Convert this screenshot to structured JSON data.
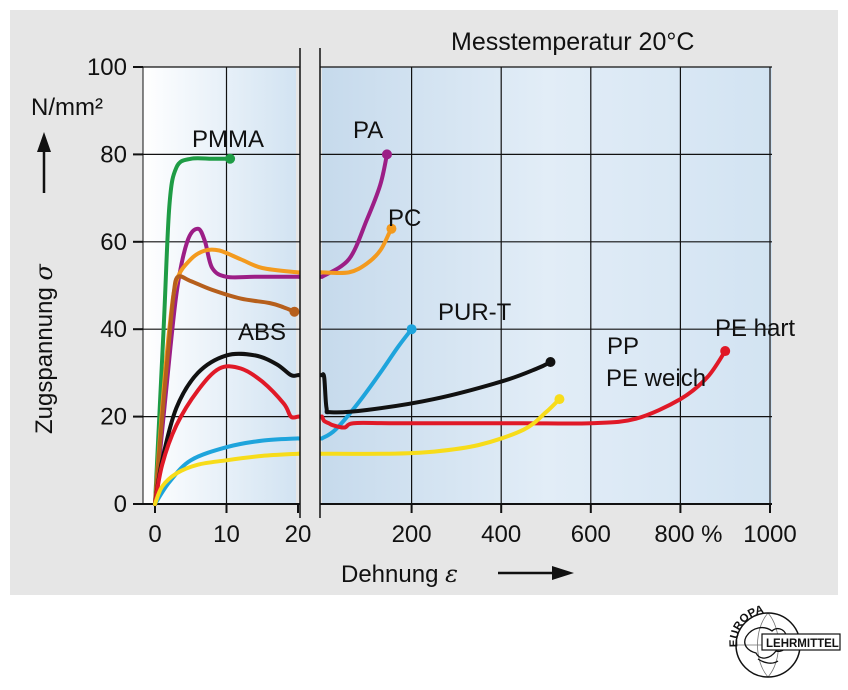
{
  "figure": {
    "subtitle": "Messtemperatur 20°C",
    "background_color": "#e6e6e6",
    "plot_gradient": [
      "#ffffff",
      "#d2e3f2"
    ]
  },
  "chart_data": {
    "type": "line",
    "title": "",
    "subtitle": "Messtemperatur 20°C",
    "xlabel": "Dehnung ε",
    "ylabel": "Zugspannung σ",
    "y_unit": "N/mm²",
    "x_unit": "%",
    "grid": true,
    "axis_break": "x-axis split: 0–20 % on left segment, 0–1000 % on right segment",
    "x_segments": [
      {
        "range": [
          0,
          20
        ],
        "ticks": [
          "0",
          "10",
          "20"
        ]
      },
      {
        "range": [
          0,
          1000
        ],
        "ticks": [
          "200",
          "400",
          "600",
          "800 %",
          "1000"
        ]
      }
    ],
    "ylim": [
      0,
      100
    ],
    "y_ticks": [
      "0",
      "20",
      "40",
      "60",
      "80",
      "100"
    ],
    "series": [
      {
        "name": "PMMA",
        "color": "#1e9c45",
        "left": [
          [
            0,
            0
          ],
          [
            1.2,
            40
          ],
          [
            2,
            68
          ],
          [
            3,
            77
          ],
          [
            5,
            79
          ],
          [
            8,
            79
          ],
          [
            10.5,
            79
          ]
        ],
        "right": []
      },
      {
        "name": "PA",
        "color": "#9c1e86",
        "left": [
          [
            0,
            0
          ],
          [
            1.5,
            25
          ],
          [
            3,
            48
          ],
          [
            4.5,
            60
          ],
          [
            6,
            63
          ],
          [
            7,
            60
          ],
          [
            8,
            54
          ],
          [
            10,
            52
          ],
          [
            14,
            52
          ],
          [
            20,
            52
          ]
        ],
        "right": [
          [
            0,
            52
          ],
          [
            60,
            56
          ],
          [
            100,
            65
          ],
          [
            130,
            73
          ],
          [
            145,
            80
          ]
        ]
      },
      {
        "name": "PC",
        "color": "#f39a1e",
        "left": [
          [
            0,
            0
          ],
          [
            1,
            22
          ],
          [
            2,
            40
          ],
          [
            3,
            51
          ],
          [
            5,
            56
          ],
          [
            7,
            58
          ],
          [
            9,
            58
          ],
          [
            12,
            56
          ],
          [
            15,
            54
          ],
          [
            20,
            53
          ]
        ],
        "right": [
          [
            0,
            53
          ],
          [
            60,
            53
          ],
          [
            100,
            55
          ],
          [
            130,
            58
          ],
          [
            150,
            62
          ],
          [
            155,
            63
          ]
        ]
      },
      {
        "name": "ABS",
        "color": "#b65f1c",
        "left": [
          [
            0,
            0
          ],
          [
            1,
            20
          ],
          [
            2,
            38
          ],
          [
            2.6,
            48
          ],
          [
            3.2,
            52
          ],
          [
            5,
            51
          ],
          [
            8,
            49
          ],
          [
            12,
            47
          ],
          [
            16,
            46
          ],
          [
            18,
            45
          ],
          [
            19.5,
            44
          ]
        ],
        "right": []
      },
      {
        "name": "PUR-T",
        "color": "#1ea4dc",
        "left": [
          [
            0,
            0
          ],
          [
            2,
            5
          ],
          [
            5,
            10
          ],
          [
            10,
            13
          ],
          [
            15,
            14.5
          ],
          [
            20,
            15
          ]
        ],
        "right": [
          [
            0,
            15
          ],
          [
            30,
            17
          ],
          [
            80,
            23
          ],
          [
            130,
            30
          ],
          [
            170,
            36
          ],
          [
            200,
            40
          ]
        ]
      },
      {
        "name": "PP",
        "color": "#111111",
        "left": [
          [
            0,
            0
          ],
          [
            1,
            10
          ],
          [
            3,
            22
          ],
          [
            6,
            30
          ],
          [
            10,
            34
          ],
          [
            14,
            34
          ],
          [
            17,
            32
          ],
          [
            19,
            29.5
          ],
          [
            20,
            29.5
          ]
        ],
        "right": [
          [
            0,
            29.5
          ],
          [
            5,
            29
          ],
          [
            10,
            22
          ],
          [
            20,
            21
          ],
          [
            100,
            21.5
          ],
          [
            250,
            24
          ],
          [
            400,
            28
          ],
          [
            480,
            31
          ],
          [
            510,
            32.5
          ]
        ]
      },
      {
        "name": "PE hart",
        "color": "#e01927",
        "left": [
          [
            0,
            0
          ],
          [
            1,
            9
          ],
          [
            3,
            18
          ],
          [
            6,
            26
          ],
          [
            9,
            31
          ],
          [
            12,
            31
          ],
          [
            15,
            28
          ],
          [
            18,
            23
          ],
          [
            19,
            20
          ],
          [
            20,
            20
          ]
        ],
        "right": [
          [
            0,
            20
          ],
          [
            5,
            19
          ],
          [
            15,
            18.5
          ],
          [
            25,
            18
          ],
          [
            50,
            17.5
          ],
          [
            70,
            18.5
          ],
          [
            150,
            18.5
          ],
          [
            300,
            18.5
          ],
          [
            450,
            18.5
          ],
          [
            600,
            18.5
          ],
          [
            700,
            19.5
          ],
          [
            800,
            24
          ],
          [
            860,
            29
          ],
          [
            900,
            35
          ]
        ]
      },
      {
        "name": "PE weich",
        "color": "#f7dc1a",
        "left": [
          [
            0,
            0
          ],
          [
            1,
            4
          ],
          [
            3,
            7
          ],
          [
            6,
            9
          ],
          [
            10,
            10
          ],
          [
            15,
            11
          ],
          [
            20,
            11.5
          ]
        ],
        "right": [
          [
            0,
            11.5
          ],
          [
            150,
            11.5
          ],
          [
            250,
            12
          ],
          [
            350,
            13.5
          ],
          [
            450,
            17
          ],
          [
            500,
            21
          ],
          [
            530,
            24
          ]
        ]
      }
    ],
    "curve_labels": [
      "PMMA",
      "PA",
      "PC",
      "ABS",
      "PUR-T",
      "PP",
      "PE weich",
      "PE hart"
    ]
  },
  "logo": {
    "arc_text": "EUROPA",
    "band_text": "LEHRMITTEL"
  }
}
